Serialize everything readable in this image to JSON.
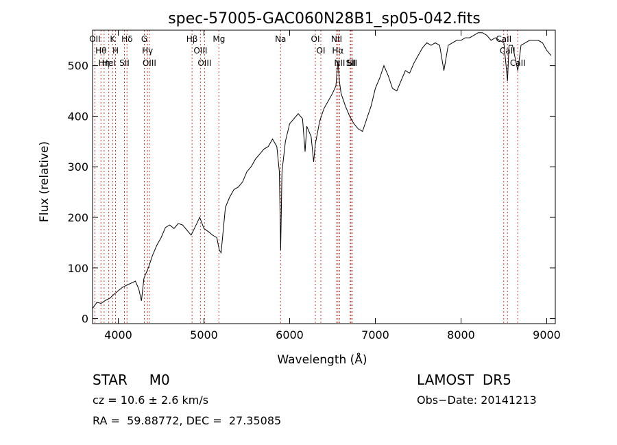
{
  "chart_data": {
    "type": "line",
    "title": "spec-57005-GAC060N28B1_sp05-042.fits",
    "xlabel": "Wavelength (Å)",
    "ylabel": "Flux (relative)",
    "xlim": [
      3700,
      9100
    ],
    "ylim": [
      -10,
      570
    ],
    "xticks": [
      4000,
      5000,
      6000,
      7000,
      8000,
      9000
    ],
    "yticks": [
      0,
      100,
      200,
      300,
      400,
      500
    ],
    "grid": false,
    "series": [
      {
        "points": [
          [
            3700,
            20
          ],
          [
            3750,
            32
          ],
          [
            3800,
            30
          ],
          [
            3850,
            36
          ],
          [
            3900,
            40
          ],
          [
            3950,
            48
          ],
          [
            4000,
            55
          ],
          [
            4050,
            62
          ],
          [
            4100,
            66
          ],
          [
            4150,
            70
          ],
          [
            4200,
            74
          ],
          [
            4240,
            58
          ],
          [
            4270,
            35
          ],
          [
            4300,
            80
          ],
          [
            4350,
            100
          ],
          [
            4400,
            125
          ],
          [
            4450,
            145
          ],
          [
            4500,
            160
          ],
          [
            4550,
            180
          ],
          [
            4600,
            185
          ],
          [
            4650,
            178
          ],
          [
            4700,
            188
          ],
          [
            4750,
            185
          ],
          [
            4800,
            175
          ],
          [
            4850,
            165
          ],
          [
            4900,
            182
          ],
          [
            4950,
            200
          ],
          [
            5000,
            178
          ],
          [
            5050,
            172
          ],
          [
            5100,
            165
          ],
          [
            5150,
            160
          ],
          [
            5180,
            135
          ],
          [
            5200,
            130
          ],
          [
            5250,
            220
          ],
          [
            5300,
            240
          ],
          [
            5350,
            255
          ],
          [
            5400,
            260
          ],
          [
            5450,
            270
          ],
          [
            5500,
            290
          ],
          [
            5550,
            300
          ],
          [
            5600,
            315
          ],
          [
            5650,
            325
          ],
          [
            5700,
            335
          ],
          [
            5750,
            340
          ],
          [
            5800,
            355
          ],
          [
            5850,
            340
          ],
          [
            5880,
            290
          ],
          [
            5895,
            135
          ],
          [
            5910,
            290
          ],
          [
            5950,
            350
          ],
          [
            6000,
            385
          ],
          [
            6050,
            395
          ],
          [
            6100,
            405
          ],
          [
            6150,
            395
          ],
          [
            6180,
            330
          ],
          [
            6200,
            380
          ],
          [
            6250,
            360
          ],
          [
            6280,
            310
          ],
          [
            6300,
            345
          ],
          [
            6350,
            390
          ],
          [
            6400,
            415
          ],
          [
            6450,
            430
          ],
          [
            6500,
            445
          ],
          [
            6540,
            460
          ],
          [
            6563,
            510
          ],
          [
            6580,
            470
          ],
          [
            6600,
            445
          ],
          [
            6650,
            420
          ],
          [
            6700,
            400
          ],
          [
            6750,
            385
          ],
          [
            6800,
            375
          ],
          [
            6850,
            370
          ],
          [
            6900,
            395
          ],
          [
            6950,
            420
          ],
          [
            7000,
            455
          ],
          [
            7050,
            475
          ],
          [
            7100,
            500
          ],
          [
            7150,
            480
          ],
          [
            7200,
            455
          ],
          [
            7250,
            450
          ],
          [
            7300,
            470
          ],
          [
            7350,
            490
          ],
          [
            7400,
            485
          ],
          [
            7450,
            505
          ],
          [
            7500,
            520
          ],
          [
            7550,
            535
          ],
          [
            7600,
            545
          ],
          [
            7650,
            540
          ],
          [
            7700,
            545
          ],
          [
            7750,
            540
          ],
          [
            7800,
            490
          ],
          [
            7850,
            540
          ],
          [
            7900,
            545
          ],
          [
            7950,
            550
          ],
          [
            8000,
            550
          ],
          [
            8050,
            555
          ],
          [
            8100,
            555
          ],
          [
            8150,
            560
          ],
          [
            8200,
            565
          ],
          [
            8250,
            565
          ],
          [
            8300,
            560
          ],
          [
            8350,
            550
          ],
          [
            8400,
            555
          ],
          [
            8450,
            550
          ],
          [
            8500,
            545
          ],
          [
            8542,
            470
          ],
          [
            8560,
            540
          ],
          [
            8600,
            540
          ],
          [
            8662,
            490
          ],
          [
            8700,
            540
          ],
          [
            8750,
            545
          ],
          [
            8800,
            550
          ],
          [
            8850,
            550
          ],
          [
            8900,
            550
          ],
          [
            8950,
            545
          ],
          [
            9000,
            530
          ],
          [
            9050,
            520
          ]
        ]
      }
    ],
    "lines": [
      {
        "x": 3727,
        "label": "OII"
      },
      {
        "x": 3798,
        "label": "Hθ"
      },
      {
        "x": 3835,
        "label": "Hη"
      },
      {
        "x": 3889,
        "label": "HeI"
      },
      {
        "x": 3934,
        "label": "K"
      },
      {
        "x": 3968,
        "label": "H"
      },
      {
        "x": 4072,
        "label": "SII"
      },
      {
        "x": 4102,
        "label": "Hδ"
      },
      {
        "x": 4304,
        "label": "G"
      },
      {
        "x": 4341,
        "label": "Hγ"
      },
      {
        "x": 4363,
        "label": "OIII"
      },
      {
        "x": 4861,
        "label": "Hβ"
      },
      {
        "x": 4959,
        "label": "OIII"
      },
      {
        "x": 5007,
        "label": "OIII"
      },
      {
        "x": 5175,
        "label": "Mg"
      },
      {
        "x": 5894,
        "label": "Na"
      },
      {
        "x": 6300,
        "label": "OI"
      },
      {
        "x": 6364,
        "label": "OI"
      },
      {
        "x": 6548,
        "label": "NII"
      },
      {
        "x": 6563,
        "label": "Hα"
      },
      {
        "x": 6583,
        "label": "NII"
      },
      {
        "x": 6707,
        "label": "Li"
      },
      {
        "x": 6716,
        "label": "SII"
      },
      {
        "x": 6731,
        "label": "SII"
      },
      {
        "x": 8498,
        "label": "CaII"
      },
      {
        "x": 8542,
        "label": "CaII"
      },
      {
        "x": 8662,
        "label": "CaII"
      }
    ]
  },
  "info": {
    "classification": "STAR     M0",
    "survey": "LAMOST  DR5",
    "cz": "cz = 10.6 ± 2.6 km/s",
    "obs_date": "Obs−Date: 20141213",
    "coords": "RA =  59.88772, DEC =  27.35085"
  },
  "colors": {
    "line_marker": "#c0392b",
    "spectrum": "#000000"
  }
}
